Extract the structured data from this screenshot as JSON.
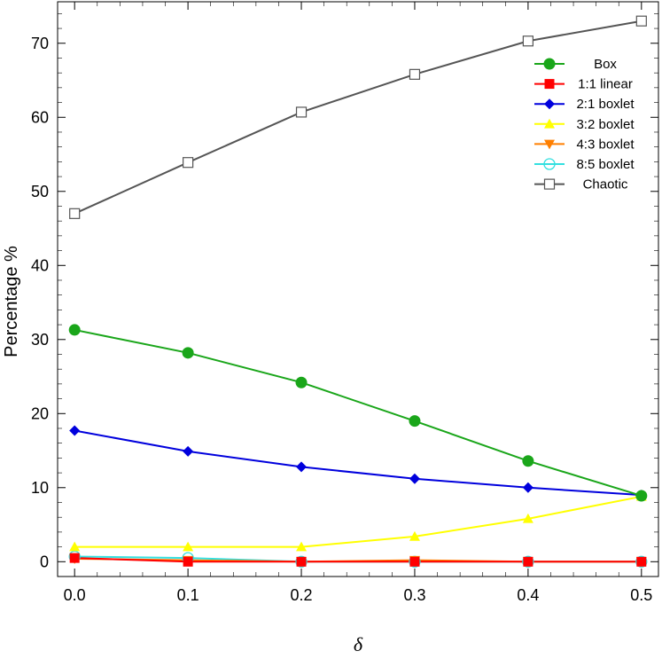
{
  "chart_data": {
    "type": "line",
    "title": "",
    "xlabel": "δ",
    "ylabel": "Percentage %",
    "xlim": [
      -0.015,
      0.515
    ],
    "ylim": [
      -2.0,
      75.6
    ],
    "x_ticks": [
      "0.0",
      "0.1",
      "0.2",
      "0.3",
      "0.4",
      "0.5"
    ],
    "y_ticks": [
      "0",
      "10",
      "20",
      "30",
      "40",
      "50",
      "60",
      "70"
    ],
    "grid": false,
    "legend_position": "top-right",
    "x": [
      0.0,
      0.1,
      0.2,
      0.3,
      0.4,
      0.5
    ],
    "series": [
      {
        "name": "Box",
        "color": "#1aa61a",
        "marker": "circle-filled",
        "values": [
          31.3,
          28.2,
          24.2,
          19.0,
          13.6,
          8.9
        ]
      },
      {
        "name": "1:1 linear",
        "color": "#ff0000",
        "marker": "square-filled",
        "values": [
          0.5,
          0.0,
          0.0,
          0.0,
          0.0,
          0.0
        ]
      },
      {
        "name": "2:1 boxlet",
        "color": "#0000dd",
        "marker": "diamond-filled",
        "values": [
          17.7,
          14.9,
          12.8,
          11.2,
          10.0,
          9.0
        ]
      },
      {
        "name": "3:2 boxlet",
        "color": "#ffff00",
        "marker": "triangle-up-filled",
        "values": [
          2.0,
          2.0,
          2.0,
          3.4,
          5.8,
          8.8
        ]
      },
      {
        "name": "4:3 boxlet",
        "color": "#ff7f00",
        "marker": "triangle-down-filled",
        "values": [
          0.4,
          0.2,
          0.0,
          0.2,
          0.0,
          0.0
        ]
      },
      {
        "name": "8:5 boxlet",
        "color": "#33e0e0",
        "marker": "circle-open",
        "values": [
          0.7,
          0.5,
          0.0,
          0.0,
          0.0,
          0.0
        ]
      },
      {
        "name": "Chaotic",
        "color": "#555555",
        "marker": "square-open",
        "values": [
          47.0,
          53.9,
          60.7,
          65.8,
          70.3,
          73.0
        ]
      }
    ]
  }
}
